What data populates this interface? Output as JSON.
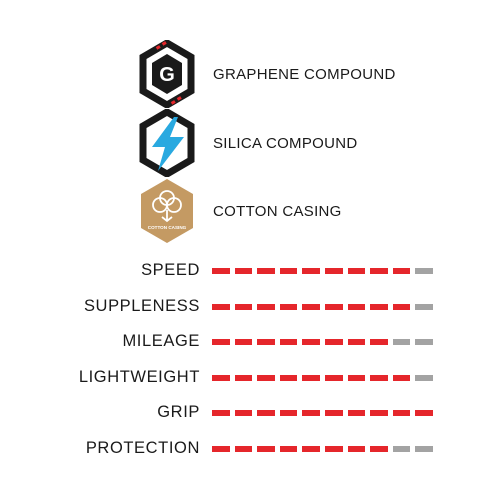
{
  "features": [
    {
      "icon": "graphene-g-icon",
      "icon_letter": "G",
      "label": "GRAPHENE COMPOUND"
    },
    {
      "icon": "silica-lightning-icon",
      "label": "SILICA COMPOUND"
    },
    {
      "icon": "cotton-casing-icon",
      "icon_text": "COTTON CASING",
      "label": "COTTON CASING"
    }
  ],
  "rating_max": 10,
  "ratings": [
    {
      "label": "SPEED",
      "value": 9
    },
    {
      "label": "SUPPLENESS",
      "value": 9
    },
    {
      "label": "MILEAGE",
      "value": 8
    },
    {
      "label": "LIGHTWEIGHT",
      "value": 9
    },
    {
      "label": "GRIP",
      "value": 10
    },
    {
      "label": "PROTECTION",
      "value": 8
    }
  ],
  "colors": {
    "filled": "#e5262b",
    "empty": "#a3a3a3",
    "hex_dark": "#1a1a1a",
    "lightning": "#29a9e0",
    "cotton": "#c49a63"
  }
}
